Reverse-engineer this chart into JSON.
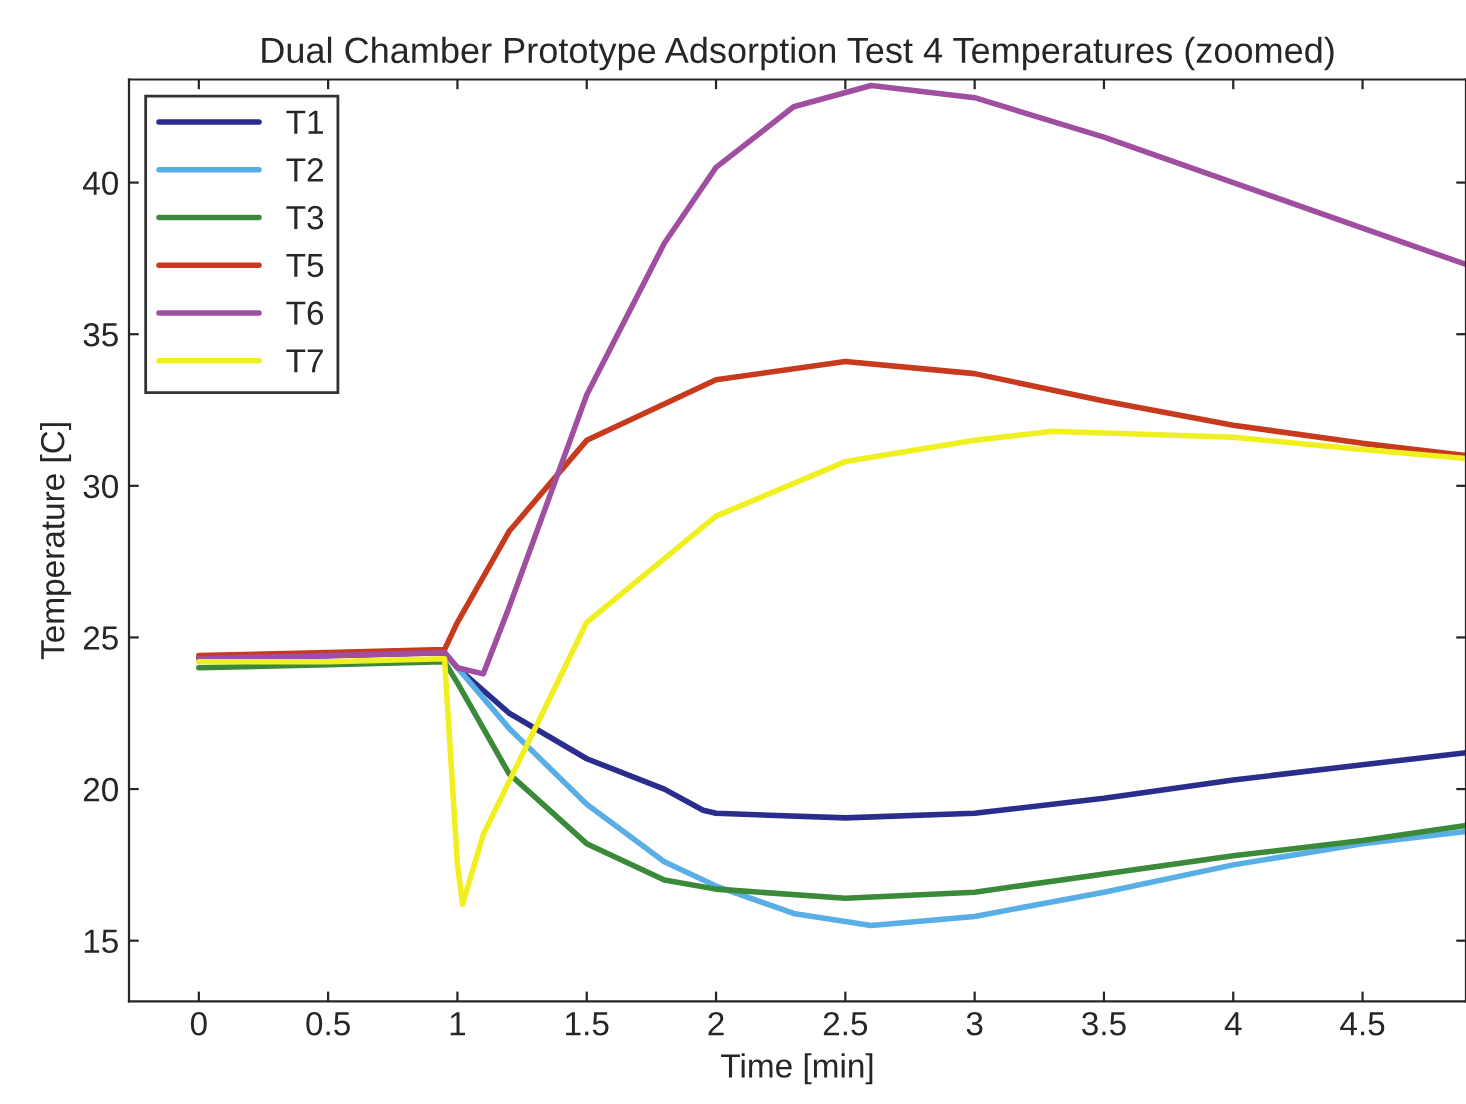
{
  "chart_data": {
    "type": "line",
    "title": "Dual Chamber Prototype Adsorption Test 4 Temperatures (zoomed)",
    "xlabel": "Time [min]",
    "ylabel": "Temperature [C]",
    "xlim": [
      -0.27,
      4.9
    ],
    "ylim": [
      13,
      43.4
    ],
    "xticks": [
      0,
      0.5,
      1,
      1.5,
      2,
      2.5,
      3,
      3.5,
      4,
      4.5
    ],
    "yticks": [
      15,
      20,
      25,
      30,
      35,
      40
    ],
    "grid": false,
    "legend": "top left",
    "marker": "none",
    "line_style": "solid",
    "series": [
      {
        "name": "T1",
        "color": "#2b2d8c",
        "x": [
          0,
          0.5,
          0.95,
          1.0,
          1.2,
          1.5,
          1.8,
          1.95,
          2.0,
          2.5,
          3.0,
          3.5,
          4.0,
          4.5,
          4.9
        ],
        "values": [
          24.3,
          24.4,
          24.5,
          24.0,
          22.5,
          21.0,
          20.0,
          19.3,
          19.2,
          19.05,
          19.2,
          19.7,
          20.3,
          20.8,
          21.2
        ]
      },
      {
        "name": "T2",
        "color": "#5aaee6",
        "x": [
          0.95,
          1.0,
          1.2,
          1.5,
          1.8,
          2.0,
          2.3,
          2.6,
          3.0,
          3.5,
          4.0,
          4.5,
          4.9
        ],
        "values": [
          24.5,
          24.0,
          22.0,
          19.5,
          17.6,
          16.8,
          15.9,
          15.5,
          15.8,
          16.6,
          17.5,
          18.2,
          18.6
        ]
      },
      {
        "name": "T3",
        "color": "#3a8a3a",
        "x": [
          0,
          0.5,
          0.95,
          1.0,
          1.2,
          1.5,
          1.8,
          2.0,
          2.5,
          3.0,
          3.5,
          4.0,
          4.5,
          4.9
        ],
        "values": [
          24.0,
          24.1,
          24.2,
          23.5,
          20.5,
          18.2,
          17.0,
          16.7,
          16.4,
          16.6,
          17.2,
          17.8,
          18.3,
          18.8
        ]
      },
      {
        "name": "T5",
        "color": "#c83a1e",
        "x": [
          0,
          0.5,
          0.95,
          1.0,
          1.2,
          1.5,
          2.0,
          2.5,
          3.0,
          3.5,
          4.0,
          4.5,
          4.9
        ],
        "values": [
          24.4,
          24.5,
          24.6,
          25.5,
          28.5,
          31.5,
          33.5,
          34.1,
          33.7,
          32.8,
          32.0,
          31.4,
          31.0
        ]
      },
      {
        "name": "T6",
        "color": "#a04ea0",
        "x": [
          0,
          0.5,
          0.95,
          1.0,
          1.1,
          1.2,
          1.5,
          1.8,
          2.0,
          2.3,
          2.6,
          3.0,
          3.5,
          4.0,
          4.5,
          4.9
        ],
        "values": [
          24.3,
          24.4,
          24.5,
          24.0,
          23.8,
          26.0,
          33.0,
          38.0,
          40.5,
          42.5,
          43.2,
          42.8,
          41.5,
          40.0,
          38.5,
          37.3
        ]
      },
      {
        "name": "T7",
        "color": "#f0f020",
        "x": [
          0,
          0.5,
          0.95,
          1.0,
          1.02,
          1.1,
          1.3,
          1.5,
          2.0,
          2.5,
          3.0,
          3.3,
          4.0,
          4.5,
          4.9
        ],
        "values": [
          24.2,
          24.2,
          24.3,
          17.5,
          16.2,
          18.5,
          22.0,
          25.5,
          29.0,
          30.8,
          31.5,
          31.8,
          31.6,
          31.2,
          30.9
        ]
      }
    ]
  }
}
